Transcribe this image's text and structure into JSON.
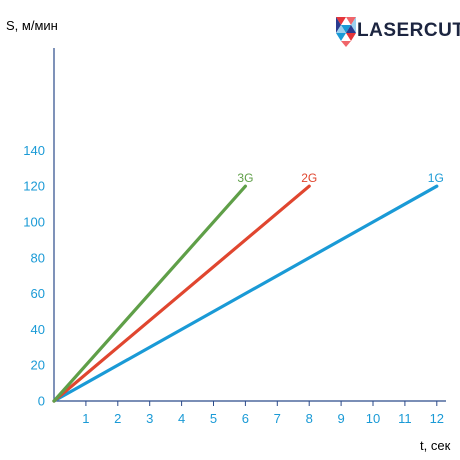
{
  "brand": {
    "name": "LASERCUT",
    "logo_icon": "lasercut-triangle-mosaic-icon",
    "logo_colors": [
      "#e5353a",
      "#f0656a",
      "#2a3a8f",
      "#1a9ad6",
      "#9ad0ee"
    ]
  },
  "colors": {
    "axis_text": "#1a9ad6",
    "axis_line": "#2a4a8a",
    "brand_text": "#1c2540"
  },
  "chart_data": {
    "type": "line",
    "xlabel": "t, сек",
    "ylabel": "S, м/мин",
    "xlim": [
      0,
      12
    ],
    "ylim": [
      0,
      140
    ],
    "x_ticks": [
      1,
      2,
      3,
      4,
      5,
      6,
      7,
      8,
      9,
      10,
      11,
      12
    ],
    "y_ticks": [
      0,
      20,
      40,
      60,
      80,
      100,
      120,
      140
    ],
    "grid": false,
    "legend": "labels at line ends",
    "series": [
      {
        "name": "1G",
        "color": "#1a9ad6",
        "x": [
          0,
          12
        ],
        "y": [
          0,
          120
        ]
      },
      {
        "name": "2G",
        "color": "#e0462f",
        "x": [
          0,
          8
        ],
        "y": [
          0,
          120
        ]
      },
      {
        "name": "3G",
        "color": "#5f9f48",
        "x": [
          0,
          6
        ],
        "y": [
          0,
          120
        ]
      }
    ]
  }
}
